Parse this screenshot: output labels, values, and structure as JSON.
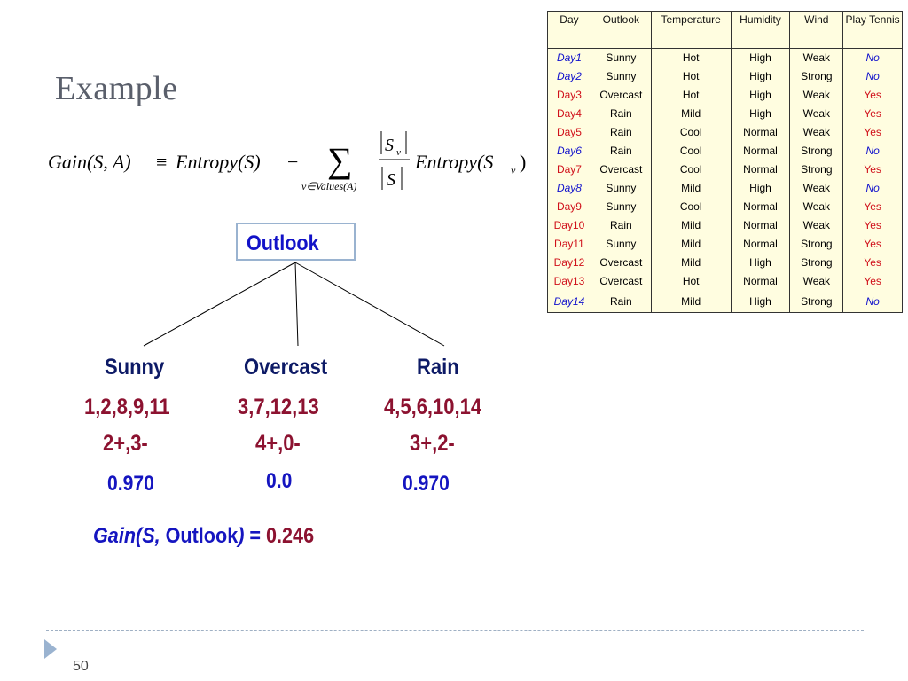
{
  "slide": {
    "title": "Example",
    "page_number": "50"
  },
  "formula": {
    "gain": "Gain",
    "args": "(S, A)",
    "equiv": "≡",
    "entropy": "Entropy",
    "of_s": "(S)",
    "minus": "−",
    "sigma": "∑",
    "sum_sub": "v∈Values(A)",
    "frac_num": "S",
    "frac_num_sub": "v",
    "frac_den": "S",
    "entropy2": "Entropy",
    "of_sv_open": "(S",
    "of_sv_sub": "v",
    "of_sv_close": ")"
  },
  "table": {
    "headers": [
      "Day",
      "Outlook",
      "Temperature",
      "Humidity",
      "Wind",
      "Play Tennis"
    ],
    "rows": [
      {
        "day": "Day1",
        "outlook": "Sunny",
        "temp": "Hot",
        "humidity": "High",
        "wind": "Weak",
        "play": "No"
      },
      {
        "day": "Day2",
        "outlook": "Sunny",
        "temp": "Hot",
        "humidity": "High",
        "wind": "Strong",
        "play": "No"
      },
      {
        "day": "Day3",
        "outlook": "Overcast",
        "temp": "Hot",
        "humidity": "High",
        "wind": "Weak",
        "play": "Yes"
      },
      {
        "day": "Day4",
        "outlook": "Rain",
        "temp": "Mild",
        "humidity": "High",
        "wind": "Weak",
        "play": "Yes"
      },
      {
        "day": "Day5",
        "outlook": "Rain",
        "temp": "Cool",
        "humidity": "Normal",
        "wind": "Weak",
        "play": "Yes"
      },
      {
        "day": "Day6",
        "outlook": "Rain",
        "temp": "Cool",
        "humidity": "Normal",
        "wind": "Strong",
        "play": "No"
      },
      {
        "day": "Day7",
        "outlook": "Overcast",
        "temp": "Cool",
        "humidity": "Normal",
        "wind": "Strong",
        "play": "Yes"
      },
      {
        "day": "Day8",
        "outlook": "Sunny",
        "temp": "Mild",
        "humidity": "High",
        "wind": "Weak",
        "play": "No"
      },
      {
        "day": "Day9",
        "outlook": "Sunny",
        "temp": "Cool",
        "humidity": "Normal",
        "wind": "Weak",
        "play": "Yes"
      },
      {
        "day": "Day10",
        "outlook": "Rain",
        "temp": "Mild",
        "humidity": "Normal",
        "wind": "Weak",
        "play": "Yes"
      },
      {
        "day": "Day11",
        "outlook": "Sunny",
        "temp": "Mild",
        "humidity": "Normal",
        "wind": "Strong",
        "play": "Yes"
      },
      {
        "day": "Day12",
        "outlook": "Overcast",
        "temp": "Mild",
        "humidity": "High",
        "wind": "Strong",
        "play": "Yes"
      },
      {
        "day": "Day13",
        "outlook": "Overcast",
        "temp": "Hot",
        "humidity": "Normal",
        "wind": "Weak",
        "play": "Yes"
      },
      {
        "day": "Day14",
        "outlook": "Rain",
        "temp": "Mild",
        "humidity": "High",
        "wind": "Strong",
        "play": "No"
      }
    ]
  },
  "colors": {
    "yes": "#d0101a",
    "no": "#1111cc",
    "table_bg": "#fffde0"
  },
  "tree": {
    "root": "Outlook",
    "branches": [
      {
        "value": "Sunny",
        "days": "1,2,8,9,11",
        "counts": "2+,3-",
        "entropy": "0.970"
      },
      {
        "value": "Overcast",
        "days": "3,7,12,13",
        "counts": "4+,0-",
        "entropy": "0.0"
      },
      {
        "value": "Rain",
        "days": "4,5,6,10,14",
        "counts": "3+,2-",
        "entropy": "0.970"
      }
    ]
  },
  "gain": {
    "prefix": "Gain(S,",
    "attribute": " Outlook",
    "close": ")",
    "equals": " = ",
    "value": "0.246"
  }
}
